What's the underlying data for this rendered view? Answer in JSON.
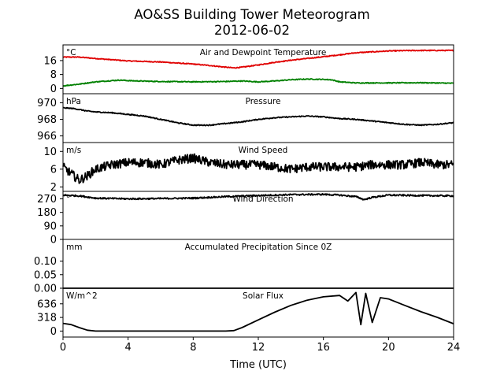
{
  "figure": {
    "title_line1": "AO&SS Building Tower Meteorogram",
    "title_line2": "2012-06-02",
    "xlabel": "Time (UTC)"
  },
  "chart_data": [
    {
      "type": "line",
      "title": "Air and Dewpoint Temperature",
      "unit": "°C",
      "xlim": [
        0,
        24
      ],
      "ylim": [
        -3,
        25
      ],
      "yticks": [
        0,
        8,
        16
      ],
      "ytick_labels": [
        "0",
        "8",
        "16"
      ],
      "noise": 0.25,
      "series": [
        {
          "color": "#e00000",
          "x": [
            0,
            1,
            2,
            3,
            4,
            6,
            8,
            9,
            10,
            10.5,
            11,
            12,
            13,
            14,
            15,
            16,
            17,
            18,
            19,
            20,
            21,
            22,
            24
          ],
          "y": [
            18,
            18,
            17.2,
            16.5,
            15.8,
            15.2,
            14,
            13.2,
            12.2,
            11.8,
            12.2,
            13.5,
            15,
            16.2,
            17.2,
            18.2,
            19.3,
            20.5,
            21,
            21.5,
            21.7,
            21.8,
            21.8
          ]
        },
        {
          "color": "#008000",
          "x": [
            0,
            1,
            2,
            3,
            3.5,
            4,
            5,
            6,
            8,
            10,
            11,
            12,
            13,
            14,
            15,
            16,
            16.5,
            17,
            18,
            20,
            22,
            24
          ],
          "y": [
            1.5,
            2.5,
            3.8,
            4.5,
            4.8,
            4.5,
            4.2,
            4.0,
            3.8,
            4.0,
            4.3,
            3.8,
            4.3,
            5.0,
            5.4,
            5.2,
            5.0,
            3.8,
            3.2,
            3.2,
            3.3,
            3.0
          ]
        }
      ]
    },
    {
      "type": "line",
      "title": "Pressure",
      "unit": "hPa",
      "xlim": [
        0,
        24
      ],
      "ylim": [
        965.2,
        971.1
      ],
      "yticks": [
        966,
        968,
        970
      ],
      "ytick_labels": [
        "966",
        "968",
        "970"
      ],
      "noise": 0.06,
      "series": [
        {
          "color": "#000000",
          "x": [
            0,
            0.7,
            1.5,
            2,
            3,
            4,
            5,
            6,
            7,
            8,
            9,
            10,
            11,
            12,
            13,
            14,
            15,
            16,
            17,
            18,
            19,
            20,
            21,
            22,
            23,
            24
          ],
          "y": [
            969.4,
            969.3,
            969.0,
            968.9,
            968.8,
            968.6,
            968.4,
            968.0,
            967.6,
            967.3,
            967.3,
            967.5,
            967.7,
            968.0,
            968.2,
            968.3,
            968.4,
            968.3,
            968.1,
            968.0,
            967.8,
            967.6,
            967.4,
            967.3,
            967.4,
            967.6
          ]
        }
      ]
    },
    {
      "type": "line",
      "title": "Wind Speed",
      "unit": "m/s",
      "xlim": [
        0,
        24
      ],
      "ylim": [
        1,
        12
      ],
      "yticks": [
        2,
        6,
        10
      ],
      "ytick_labels": [
        "2",
        "6",
        "10"
      ],
      "noise": 1.0,
      "series": [
        {
          "color": "#000000",
          "x": [
            0,
            0.5,
            1,
            1.5,
            2,
            3,
            4,
            5,
            6,
            7,
            8,
            9,
            10,
            11,
            12,
            13,
            14,
            15,
            16,
            17,
            18,
            19,
            20,
            21,
            22,
            23,
            24
          ],
          "y": [
            6.5,
            5.0,
            3.5,
            4.5,
            6.0,
            7.0,
            7.5,
            7.5,
            7.0,
            8.0,
            8.5,
            7.5,
            7.0,
            7.0,
            7.0,
            6.5,
            6.0,
            6.5,
            6.5,
            6.5,
            6.5,
            7.0,
            7.0,
            7.0,
            7.5,
            7.0,
            7.0
          ]
        }
      ]
    },
    {
      "type": "line",
      "title": "Wind Direction",
      "unit": "°",
      "xlim": [
        0,
        24
      ],
      "ylim": [
        0,
        320
      ],
      "yticks": [
        0,
        90,
        180,
        270
      ],
      "ytick_labels": [
        "0",
        "90",
        "180",
        "270"
      ],
      "noise": 5,
      "series": [
        {
          "color": "#000000",
          "x": [
            0,
            1,
            2,
            4,
            6,
            8,
            10,
            12,
            14,
            16,
            17,
            18,
            18.5,
            19,
            20,
            22,
            24
          ],
          "y": [
            295,
            290,
            275,
            270,
            272,
            275,
            285,
            292,
            298,
            300,
            295,
            285,
            265,
            280,
            295,
            292,
            290
          ]
        }
      ]
    },
    {
      "type": "line",
      "title": "Accumulated Precipitation Since 0Z",
      "unit": "mm",
      "xlim": [
        0,
        24
      ],
      "ylim": [
        0,
        0.18
      ],
      "yticks": [
        0.0,
        0.05,
        0.1
      ],
      "ytick_labels": [
        "0.00",
        "0.05",
        "0.10"
      ],
      "noise": 0,
      "series": [
        {
          "color": "#000000",
          "x": [
            0,
            24
          ],
          "y": [
            0,
            0
          ]
        }
      ]
    },
    {
      "type": "line",
      "title": "Solar Flux",
      "unit": "W/m^2",
      "xlim": [
        0,
        24
      ],
      "ylim": [
        -140,
        1000
      ],
      "yticks": [
        0,
        318,
        636
      ],
      "ytick_labels": [
        "0",
        "318",
        "636"
      ],
      "noise": 0,
      "series": [
        {
          "color": "#000000",
          "x": [
            0,
            0.5,
            1,
            1.5,
            2,
            3,
            4,
            6,
            8,
            10,
            10.5,
            11,
            12,
            13,
            14,
            15,
            16,
            17,
            17.5,
            18,
            18.3,
            18.6,
            19,
            19.5,
            20,
            21,
            22,
            23,
            24
          ],
          "y": [
            180,
            150,
            80,
            20,
            0,
            0,
            0,
            0,
            0,
            0,
            10,
            80,
            260,
            440,
            600,
            720,
            800,
            830,
            700,
            900,
            150,
            880,
            200,
            780,
            750,
            600,
            450,
            320,
            170
          ]
        }
      ]
    }
  ]
}
